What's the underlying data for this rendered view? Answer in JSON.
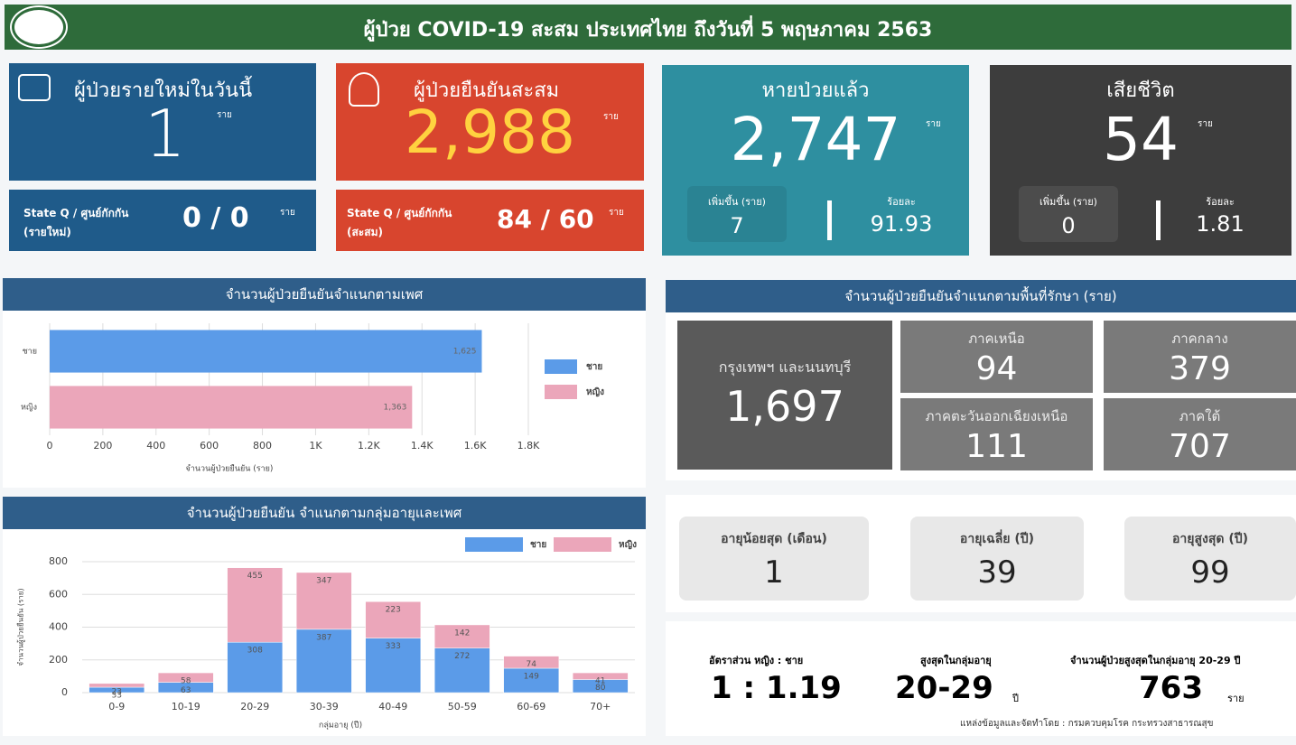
{
  "header": {
    "title": "ผู้ป่วย COVID-19 สะสม  ประเทศไทย ถึงวันที่ 5 พฤษภาคม 2563"
  },
  "cards": [
    {
      "label": "ผู้ป่วยรายใหม่ในวันนี้",
      "value": "1",
      "unit": "ราย",
      "sub_label": "State Q / ศูนย์กักกัน",
      "sub_note": "(รายใหม่)",
      "sub_value": "0 / 0",
      "sub_unit": "ราย"
    },
    {
      "label": "ผู้ป่วยยืนยันสะสม",
      "value": "2,988",
      "unit": "ราย",
      "sub_label": "State Q / ศูนย์กักกัน",
      "sub_note": "(สะสม)",
      "sub_value": "84 / 60",
      "sub_unit": "ราย"
    },
    {
      "label": "หายป่วยแล้ว",
      "value": "2,747",
      "unit": "ราย",
      "inc_label": "เพิ่มขึ้น (ราย)",
      "inc_value": "7",
      "pct_label": "ร้อยละ",
      "pct_value": "91.93"
    },
    {
      "label": "เสียชีวิต",
      "value": "54",
      "unit": "ราย",
      "inc_label": "เพิ่มขึ้น (ราย)",
      "inc_value": "0",
      "pct_label": "ร้อยละ",
      "pct_value": "1.81"
    }
  ],
  "regions": {
    "title": "จำนวนผู้ป่วยยืนยันจำแนกตามพื้นที่รักษา (ราย)",
    "items": [
      {
        "name": "กรุงเทพฯ และนนทบุรี",
        "value": "1,697"
      },
      {
        "name": "ภาคเหนือ",
        "value": "94"
      },
      {
        "name": "ภาคกลาง",
        "value": "379"
      },
      {
        "name": "ภาคตะวันออกเฉียงเหนือ",
        "value": "111"
      },
      {
        "name": "ภาคใต้",
        "value": "707"
      }
    ]
  },
  "ages": [
    {
      "label": "อายุน้อยสุด (เดือน)",
      "value": "1"
    },
    {
      "label": "อายุเฉลี่ย (ปี)",
      "value": "39"
    },
    {
      "label": "อายุสูงสุด (ปี)",
      "value": "99"
    }
  ],
  "summary": [
    {
      "label": "อัตราส่วน หญิง : ชาย",
      "value": "1 : 1.19"
    },
    {
      "label": "สูงสุดในกลุ่มอายุ",
      "value": "20-29",
      "unit": "ปี"
    },
    {
      "label": "จำนวนผู้ป่วยสูงสุดในกลุ่มอายุ 20-29 ปี",
      "value": "763",
      "unit": "ราย"
    }
  ],
  "source": "แหล่งข้อมูลและจัดทำโดย : กรมควบคุมโรค กระทรวงสาธารณสุข",
  "chart_data": [
    {
      "type": "bar",
      "orientation": "horizontal",
      "title": "จำนวนผู้ป่วยยืนยันจำแนกตามเพศ",
      "categories": [
        "ชาย",
        "หญิง"
      ],
      "values": [
        1625,
        1363
      ],
      "value_labels": [
        "1,625",
        "1,363"
      ],
      "colors": [
        "#5b9be8",
        "#eba6ba"
      ],
      "xlabel": "จำนวนผู้ป่วยยืนยัน (ราย)",
      "xlim": [
        0,
        1800
      ],
      "xticks": [
        0,
        200,
        400,
        600,
        800,
        {
          "value": 1000,
          "label": "1K"
        },
        {
          "value": 1200,
          "label": "1.2K"
        },
        {
          "value": 1400,
          "label": "1.4K"
        },
        {
          "value": 1600,
          "label": "1.6K"
        },
        {
          "value": 1800,
          "label": "1.8K"
        }
      ],
      "grid": true
    },
    {
      "type": "bar",
      "stacked": true,
      "title": "จำนวนผู้ป่วยยืนยัน จำแนกตามกลุ่มอายุและเพศ",
      "categories": [
        "0-9",
        "10-19",
        "20-29",
        "30-39",
        "40-49",
        "50-59",
        "60-69",
        "70+"
      ],
      "series": [
        {
          "name": "ชาย",
          "color": "#5b9be8",
          "values": [
            33,
            63,
            308,
            387,
            333,
            272,
            149,
            80
          ]
        },
        {
          "name": "หญิง",
          "color": "#eba6ba",
          "values": [
            23,
            58,
            455,
            347,
            223,
            142,
            74,
            41
          ]
        }
      ],
      "xlabel": "กลุ่มอายุ (ปี)",
      "ylabel": "จำนวนผู้ป่วยยืนยัน (ราย)",
      "ylim": [
        0,
        800
      ],
      "yticks": [
        0,
        200,
        400,
        600,
        800
      ],
      "grid": true
    }
  ]
}
